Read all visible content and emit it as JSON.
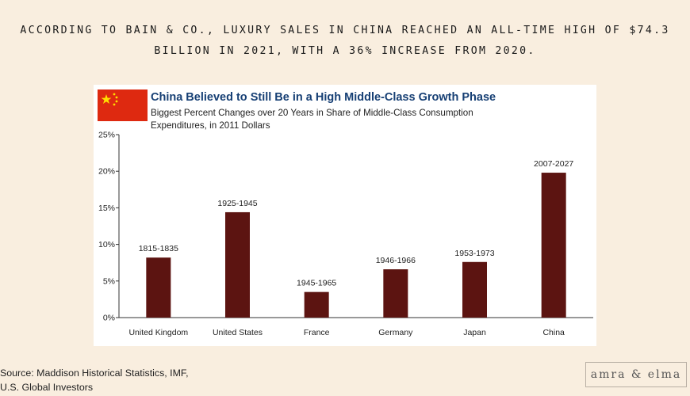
{
  "headline": "ACCORDING TO BAIN & CO., LUXURY SALES IN CHINA REACHED AN ALL-TIME HIGH OF $74.3 BILLION IN 2021, WITH A 36% INCREASE FROM 2020.",
  "source": {
    "line1": "Source: Maddison Historical Statistics, IMF,",
    "line2": "U.S. Global Investors"
  },
  "logo": "amra & elma",
  "colors": {
    "bar": "#5c1411",
    "title": "#163f74",
    "flag_red": "#de2910",
    "flag_star": "#ffde00",
    "background": "#f9eedf"
  },
  "chart_data": {
    "type": "bar",
    "title": "China Believed to Still Be in a High Middle-Class Growth Phase",
    "subtitle": "Biggest Percent Changes over 20 Years in Share of Middle-Class Consumption Expenditures, in 2011 Dollars",
    "categories": [
      "United Kingdom",
      "United States",
      "France",
      "Germany",
      "Japan",
      "China"
    ],
    "values": [
      8.2,
      14.4,
      3.5,
      6.6,
      7.6,
      19.8
    ],
    "data_labels": [
      "1815-1835",
      "1925-1945",
      "1945-1965",
      "1946-1966",
      "1953-1973",
      "2007-2027"
    ],
    "ylim": [
      0,
      25
    ],
    "yticks": [
      0,
      5,
      10,
      15,
      20,
      25
    ],
    "ytick_labels": [
      "0%",
      "5%",
      "10%",
      "15%",
      "20%",
      "25%"
    ],
    "grid": false,
    "legend": "none"
  }
}
